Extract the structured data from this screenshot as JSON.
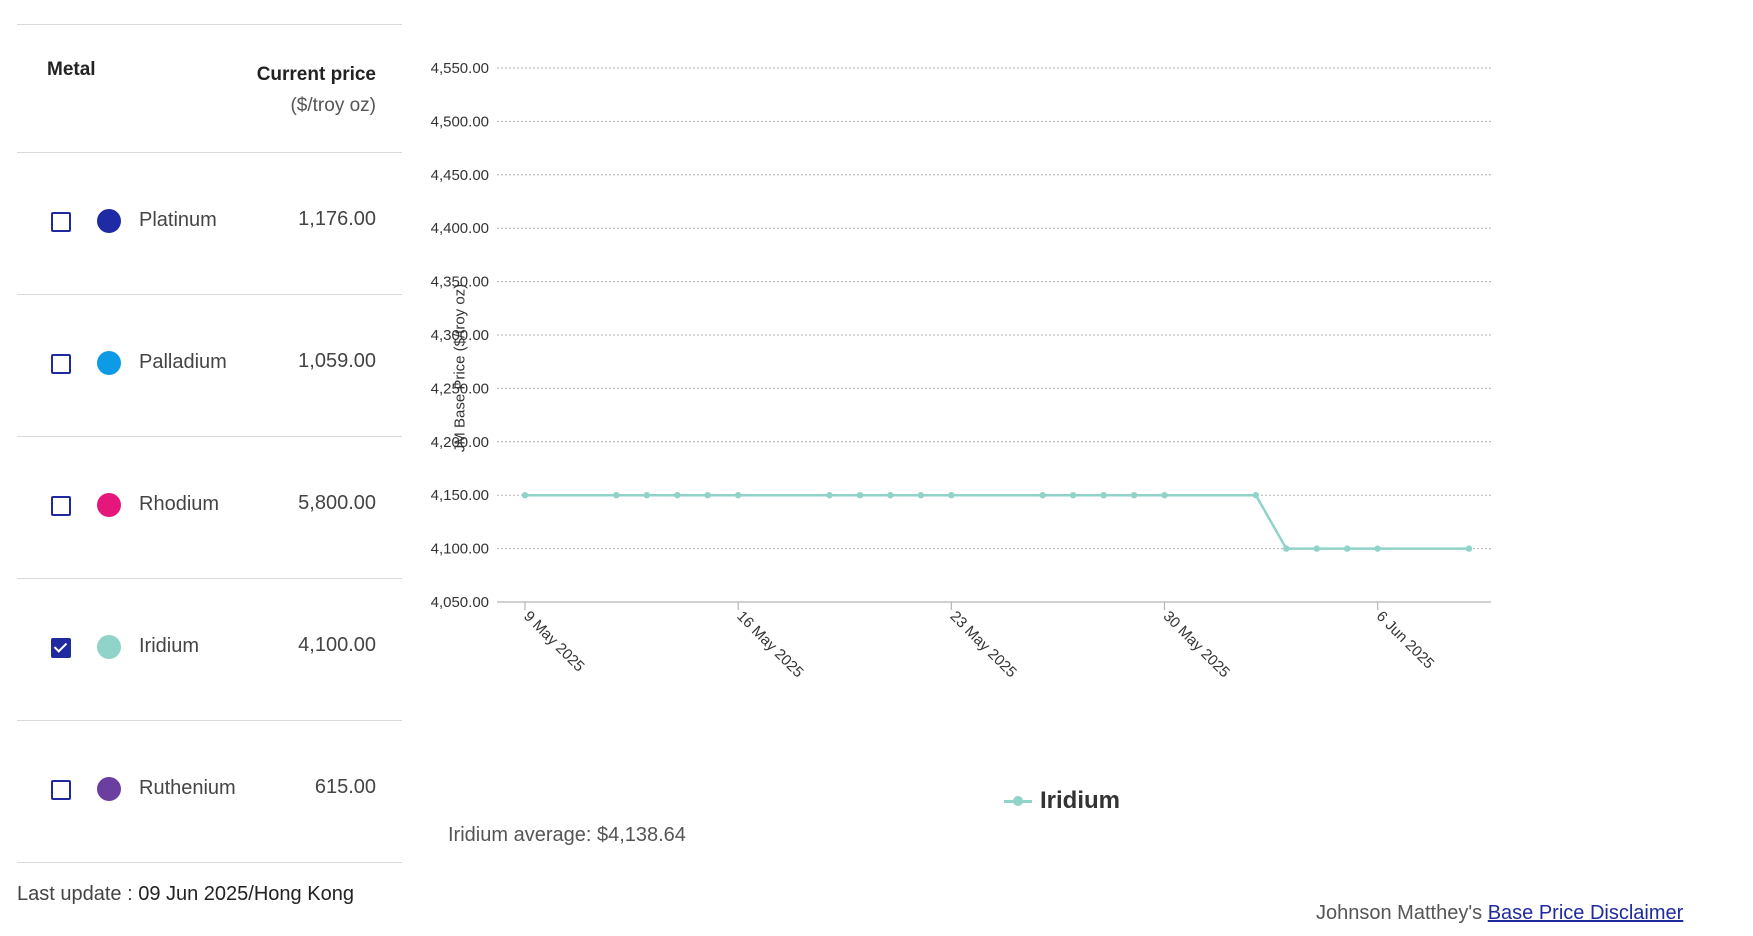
{
  "table": {
    "header_metal": "Metal",
    "header_price_line1": "Current price",
    "header_price_line2": "($/troy oz)",
    "rows": [
      {
        "name": "Platinum",
        "price": "1,176.00",
        "color": "#1f2aa5",
        "checked": false
      },
      {
        "name": "Palladium",
        "price": "1,059.00",
        "color": "#0d9be6",
        "checked": false
      },
      {
        "name": "Rhodium",
        "price": "5,800.00",
        "color": "#e6177a",
        "checked": false
      },
      {
        "name": "Iridium",
        "price": "4,100.00",
        "color": "#8fd3c9",
        "checked": true
      },
      {
        "name": "Ruthenium",
        "price": "615.00",
        "color": "#6b3fa0",
        "checked": false
      }
    ]
  },
  "last_update": {
    "label": "Last update : ",
    "value": "09 Jun 2025/Hong Kong"
  },
  "average_text": "Iridium average: $4,138.64",
  "disclaimer": {
    "prefix": "Johnson Matthey's ",
    "link": "Base Price Disclaimer"
  },
  "chart_data": {
    "type": "line",
    "ylabel": "JM Base Price ($/troy oz)",
    "ylim": [
      4050,
      4550
    ],
    "yticks": [
      4550,
      4500,
      4450,
      4400,
      4350,
      4300,
      4250,
      4200,
      4150,
      4100,
      4050
    ],
    "ytick_labels": [
      "4,550.00",
      "4,500.00",
      "4,450.00",
      "4,400.00",
      "4,350.00",
      "4,300.00",
      "4,250.00",
      "4,200.00",
      "4,150.00",
      "4,100.00",
      "4,050.00"
    ],
    "xlim": [
      "2025-05-09",
      "2025-06-09"
    ],
    "xticks": [
      "2025-05-09",
      "2025-05-16",
      "2025-05-23",
      "2025-05-30",
      "2025-06-06"
    ],
    "xtick_labels": [
      "9 May 2025",
      "16 May 2025",
      "23 May 2025",
      "30 May 2025",
      "6 Jun 2025"
    ],
    "grid": true,
    "legend_position": "bottom-center",
    "series": [
      {
        "name": "Iridium",
        "color": "#8fd3c9",
        "x": [
          "2025-05-09",
          "2025-05-12",
          "2025-05-13",
          "2025-05-14",
          "2025-05-15",
          "2025-05-16",
          "2025-05-19",
          "2025-05-20",
          "2025-05-21",
          "2025-05-22",
          "2025-05-23",
          "2025-05-26",
          "2025-05-27",
          "2025-05-28",
          "2025-05-29",
          "2025-05-30",
          "2025-06-02",
          "2025-06-03",
          "2025-06-04",
          "2025-06-05",
          "2025-06-06",
          "2025-06-09"
        ],
        "y": [
          4150,
          4150,
          4150,
          4150,
          4150,
          4150,
          4150,
          4150,
          4150,
          4150,
          4150,
          4150,
          4150,
          4150,
          4150,
          4150,
          4150,
          4100,
          4100,
          4100,
          4100,
          4100
        ]
      }
    ]
  }
}
